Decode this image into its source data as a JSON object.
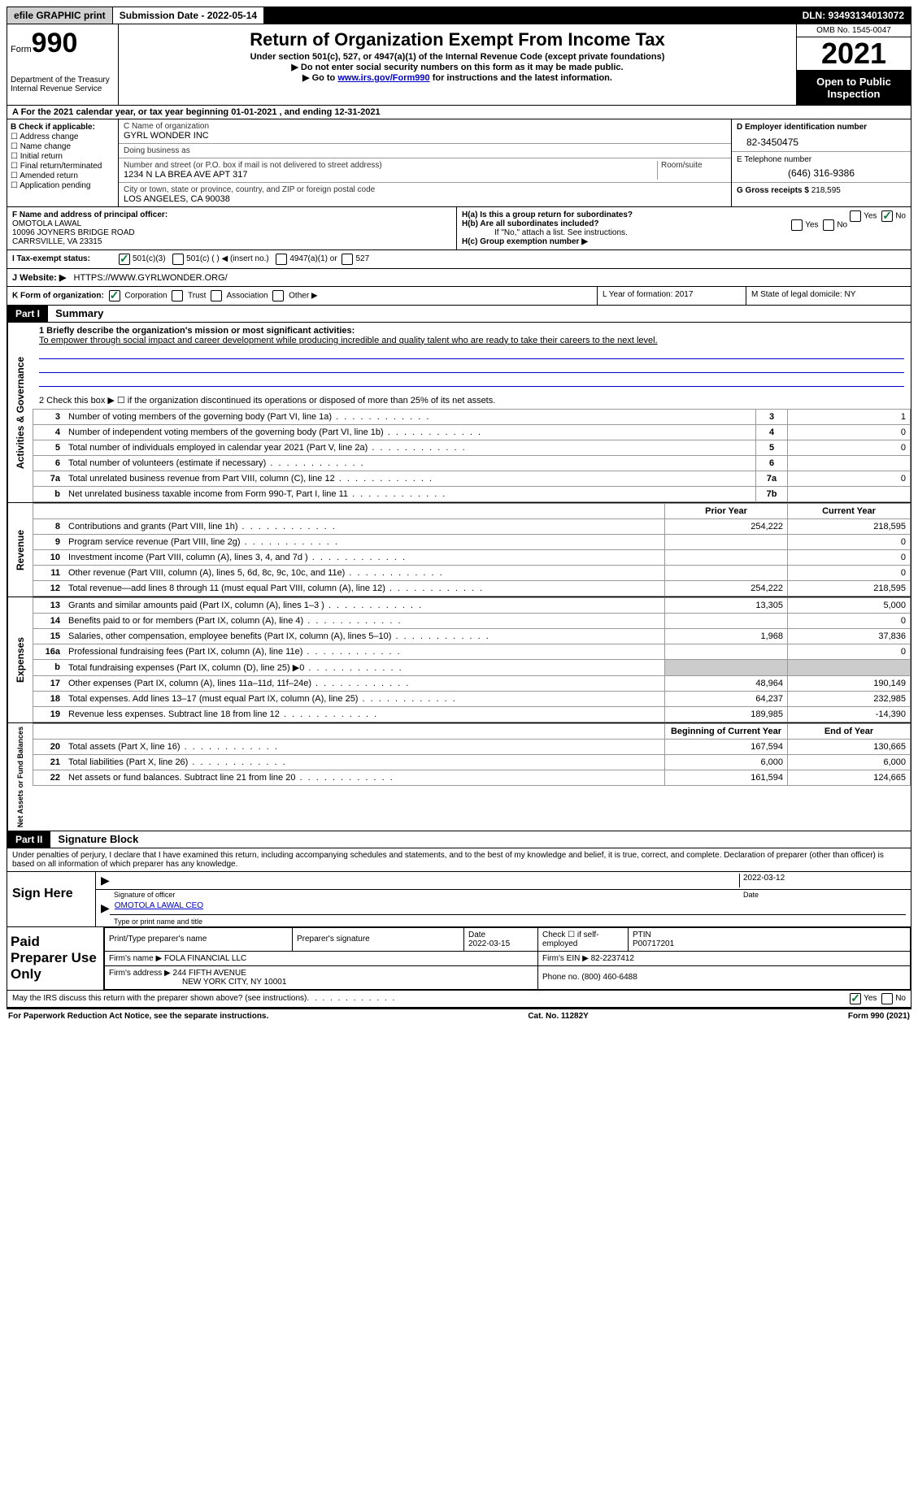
{
  "top": {
    "efile": "efile GRAPHIC print",
    "submission": "Submission Date - 2022-05-14",
    "dln": "DLN: 93493134013072"
  },
  "header": {
    "form_word": "Form",
    "form_num": "990",
    "title": "Return of Organization Exempt From Income Tax",
    "subtitle": "Under section 501(c), 527, or 4947(a)(1) of the Internal Revenue Code (except private foundations)",
    "note1": "▶ Do not enter social security numbers on this form as it may be made public.",
    "note2_pre": "▶ Go to ",
    "note2_link": "www.irs.gov/Form990",
    "note2_post": " for instructions and the latest information.",
    "dept": "Department of the Treasury\nInternal Revenue Service",
    "omb": "OMB No. 1545-0047",
    "year": "2021",
    "open": "Open to Public Inspection"
  },
  "row_a": "A For the 2021 calendar year, or tax year beginning 01-01-2021    , and ending 12-31-2021",
  "col_b": {
    "label": "B Check if applicable:",
    "opts": [
      "Address change",
      "Name change",
      "Initial return",
      "Final return/terminated",
      "Amended return",
      "Application pending"
    ]
  },
  "col_c": {
    "name_label": "C Name of organization",
    "name": "GYRL WONDER INC",
    "dba_label": "Doing business as",
    "dba": "",
    "street_label": "Number and street (or P.O. box if mail is not delivered to street address)",
    "room_label": "Room/suite",
    "street": "1234 N LA BREA AVE APT 317",
    "city_label": "City or town, state or province, country, and ZIP or foreign postal code",
    "city": "LOS ANGELES, CA  90038"
  },
  "col_d": {
    "ein_label": "D Employer identification number",
    "ein": "82-3450475",
    "phone_label": "E Telephone number",
    "phone": "(646) 316-9386",
    "gross_label": "G Gross receipts $",
    "gross": "218,595"
  },
  "row_f": {
    "label": "F  Name and address of principal officer:",
    "name": "OMOTOLA LAWAL",
    "addr1": "10096 JOYNERS BRIDGE ROAD",
    "addr2": "CARRSVILLE, VA  23315",
    "h_a": "H(a)  Is this a group return for subordinates?",
    "h_b": "H(b)  Are all subordinates included?",
    "h_note": "If \"No,\" attach a list. See instructions.",
    "h_c": "H(c)  Group exemption number ▶"
  },
  "row_i": {
    "label": "I    Tax-exempt status:",
    "o1": "501(c)(3)",
    "o2": "501(c) (  ) ◀ (insert no.)",
    "o3": "4947(a)(1) or",
    "o4": "527"
  },
  "row_j": {
    "label": "J   Website: ▶",
    "val": "HTTPS://WWW.GYRLWONDER.ORG/"
  },
  "row_k": {
    "label": "K Form of organization:",
    "o1": "Corporation",
    "o2": "Trust",
    "o3": "Association",
    "o4": "Other ▶",
    "l": "L Year of formation: 2017",
    "m": "M State of legal domicile: NY"
  },
  "part1": {
    "hdr": "Part I",
    "title": "Summary",
    "line1_label": "1   Briefly describe the organization's mission or most significant activities:",
    "mission": "To empower through social impact and career development while producing incredible and quality talent who are ready to take their careers to the next level.",
    "line2": "2    Check this box ▶ ☐  if the organization discontinued its operations or disposed of more than 25% of its net assets.",
    "tabs": {
      "ag": "Activities & Governance",
      "rev": "Revenue",
      "exp": "Expenses",
      "net": "Net Assets or Fund Balances"
    },
    "rows_ag": [
      {
        "n": "3",
        "d": "Number of voting members of the governing body (Part VI, line 1a)",
        "box": "3",
        "v": "1"
      },
      {
        "n": "4",
        "d": "Number of independent voting members of the governing body (Part VI, line 1b)",
        "box": "4",
        "v": "0"
      },
      {
        "n": "5",
        "d": "Total number of individuals employed in calendar year 2021 (Part V, line 2a)",
        "box": "5",
        "v": "0"
      },
      {
        "n": "6",
        "d": "Total number of volunteers (estimate if necessary)",
        "box": "6",
        "v": ""
      },
      {
        "n": "7a",
        "d": "Total unrelated business revenue from Part VIII, column (C), line 12",
        "box": "7a",
        "v": "0"
      },
      {
        "n": "b",
        "d": "Net unrelated business taxable income from Form 990-T, Part I, line 11",
        "box": "7b",
        "v": ""
      }
    ],
    "col_prior": "Prior Year",
    "col_curr": "Current Year",
    "rows_rev": [
      {
        "n": "8",
        "d": "Contributions and grants (Part VIII, line 1h)",
        "p": "254,222",
        "c": "218,595"
      },
      {
        "n": "9",
        "d": "Program service revenue (Part VIII, line 2g)",
        "p": "",
        "c": "0"
      },
      {
        "n": "10",
        "d": "Investment income (Part VIII, column (A), lines 3, 4, and 7d )",
        "p": "",
        "c": "0"
      },
      {
        "n": "11",
        "d": "Other revenue (Part VIII, column (A), lines 5, 6d, 8c, 9c, 10c, and 11e)",
        "p": "",
        "c": "0"
      },
      {
        "n": "12",
        "d": "Total revenue—add lines 8 through 11 (must equal Part VIII, column (A), line 12)",
        "p": "254,222",
        "c": "218,595"
      }
    ],
    "rows_exp": [
      {
        "n": "13",
        "d": "Grants and similar amounts paid (Part IX, column (A), lines 1–3 )",
        "p": "13,305",
        "c": "5,000"
      },
      {
        "n": "14",
        "d": "Benefits paid to or for members (Part IX, column (A), line 4)",
        "p": "",
        "c": "0"
      },
      {
        "n": "15",
        "d": "Salaries, other compensation, employee benefits (Part IX, column (A), lines 5–10)",
        "p": "1,968",
        "c": "37,836"
      },
      {
        "n": "16a",
        "d": "Professional fundraising fees (Part IX, column (A), line 11e)",
        "p": "",
        "c": "0"
      },
      {
        "n": "b",
        "d": "Total fundraising expenses (Part IX, column (D), line 25) ▶0",
        "p": "SHADE",
        "c": "SHADE"
      },
      {
        "n": "17",
        "d": "Other expenses (Part IX, column (A), lines 11a–11d, 11f–24e)",
        "p": "48,964",
        "c": "190,149"
      },
      {
        "n": "18",
        "d": "Total expenses. Add lines 13–17 (must equal Part IX, column (A), line 25)",
        "p": "64,237",
        "c": "232,985"
      },
      {
        "n": "19",
        "d": "Revenue less expenses. Subtract line 18 from line 12",
        "p": "189,985",
        "c": "-14,390"
      }
    ],
    "col_beg": "Beginning of Current Year",
    "col_end": "End of Year",
    "rows_net": [
      {
        "n": "20",
        "d": "Total assets (Part X, line 16)",
        "p": "167,594",
        "c": "130,665"
      },
      {
        "n": "21",
        "d": "Total liabilities (Part X, line 26)",
        "p": "6,000",
        "c": "6,000"
      },
      {
        "n": "22",
        "d": "Net assets or fund balances. Subtract line 21 from line 20",
        "p": "161,594",
        "c": "124,665"
      }
    ]
  },
  "part2": {
    "hdr": "Part II",
    "title": "Signature Block",
    "penalties": "Under penalties of perjury, I declare that I have examined this return, including accompanying schedules and statements, and to the best of my knowledge and belief, it is true, correct, and complete. Declaration of preparer (other than officer) is based on all information of which preparer has any knowledge.",
    "sign_here": "Sign Here",
    "sig_officer": "Signature of officer",
    "sig_date": "2022-03-12",
    "date_label": "Date",
    "officer_name": "OMOTOLA LAWAL CEO",
    "type_label": "Type or print name and title",
    "paid": "Paid Preparer Use Only",
    "prep_name_label": "Print/Type preparer's name",
    "prep_sig_label": "Preparer's signature",
    "prep_date_label": "Date",
    "prep_date": "2022-03-15",
    "check_self": "Check ☐ if self-employed",
    "ptin_label": "PTIN",
    "ptin": "P00717201",
    "firm_name_label": "Firm's name    ▶",
    "firm_name": "FOLA FINANCIAL LLC",
    "firm_ein_label": "Firm's EIN ▶",
    "firm_ein": "82-2237412",
    "firm_addr_label": "Firm's address ▶",
    "firm_addr1": "244 FIFTH AVENUE",
    "firm_addr2": "NEW YORK CITY, NY  10001",
    "firm_phone_label": "Phone no.",
    "firm_phone": "(800) 460-6488",
    "may_irs": "May the IRS discuss this return with the preparer shown above? (see instructions)",
    "yes": "Yes",
    "no": "No"
  },
  "footer": {
    "pra": "For Paperwork Reduction Act Notice, see the separate instructions.",
    "cat": "Cat. No. 11282Y",
    "form": "Form 990 (2021)"
  }
}
